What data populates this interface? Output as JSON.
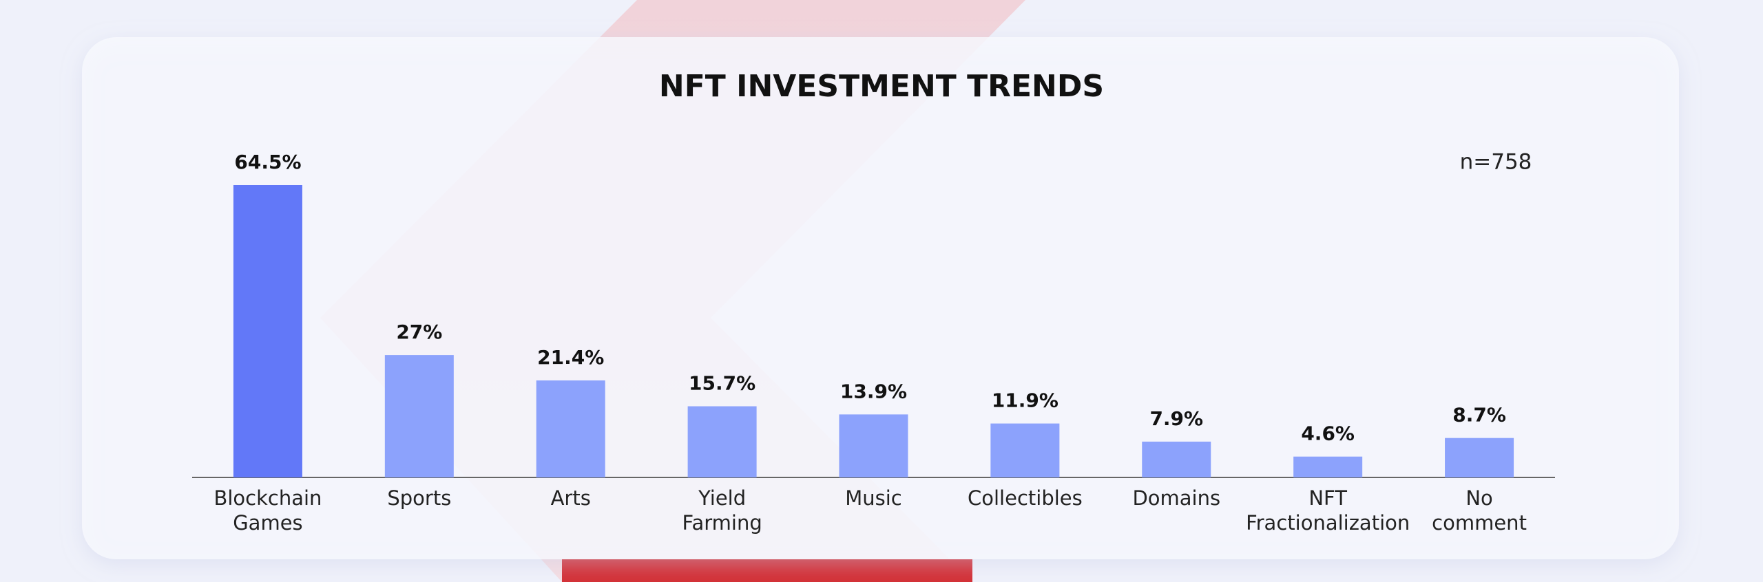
{
  "chart_data": {
    "type": "bar",
    "title": "NFT INVESTMENT TRENDS",
    "annotation": "n=758",
    "categories": [
      "Blockchain Games",
      "Sports",
      "Arts",
      "Yield Farming",
      "Music",
      "Collectibles",
      "Domains",
      "NFT Fractionalization",
      "No comment"
    ],
    "values": [
      64.5,
      27,
      21.4,
      15.7,
      13.9,
      11.9,
      7.9,
      4.6,
      8.7
    ],
    "value_labels": [
      "64.5%",
      "27%",
      "21.4%",
      "15.7%",
      "13.9%",
      "11.9%",
      "7.9%",
      "4.6%",
      "8.7%"
    ],
    "colors": [
      "#6278f8",
      "#8ca2fc",
      "#8ca2fc",
      "#8ca2fc",
      "#8ca2fc",
      "#8ca2fc",
      "#8ca2fc",
      "#8ca2fc",
      "#8ca2fc"
    ]
  }
}
